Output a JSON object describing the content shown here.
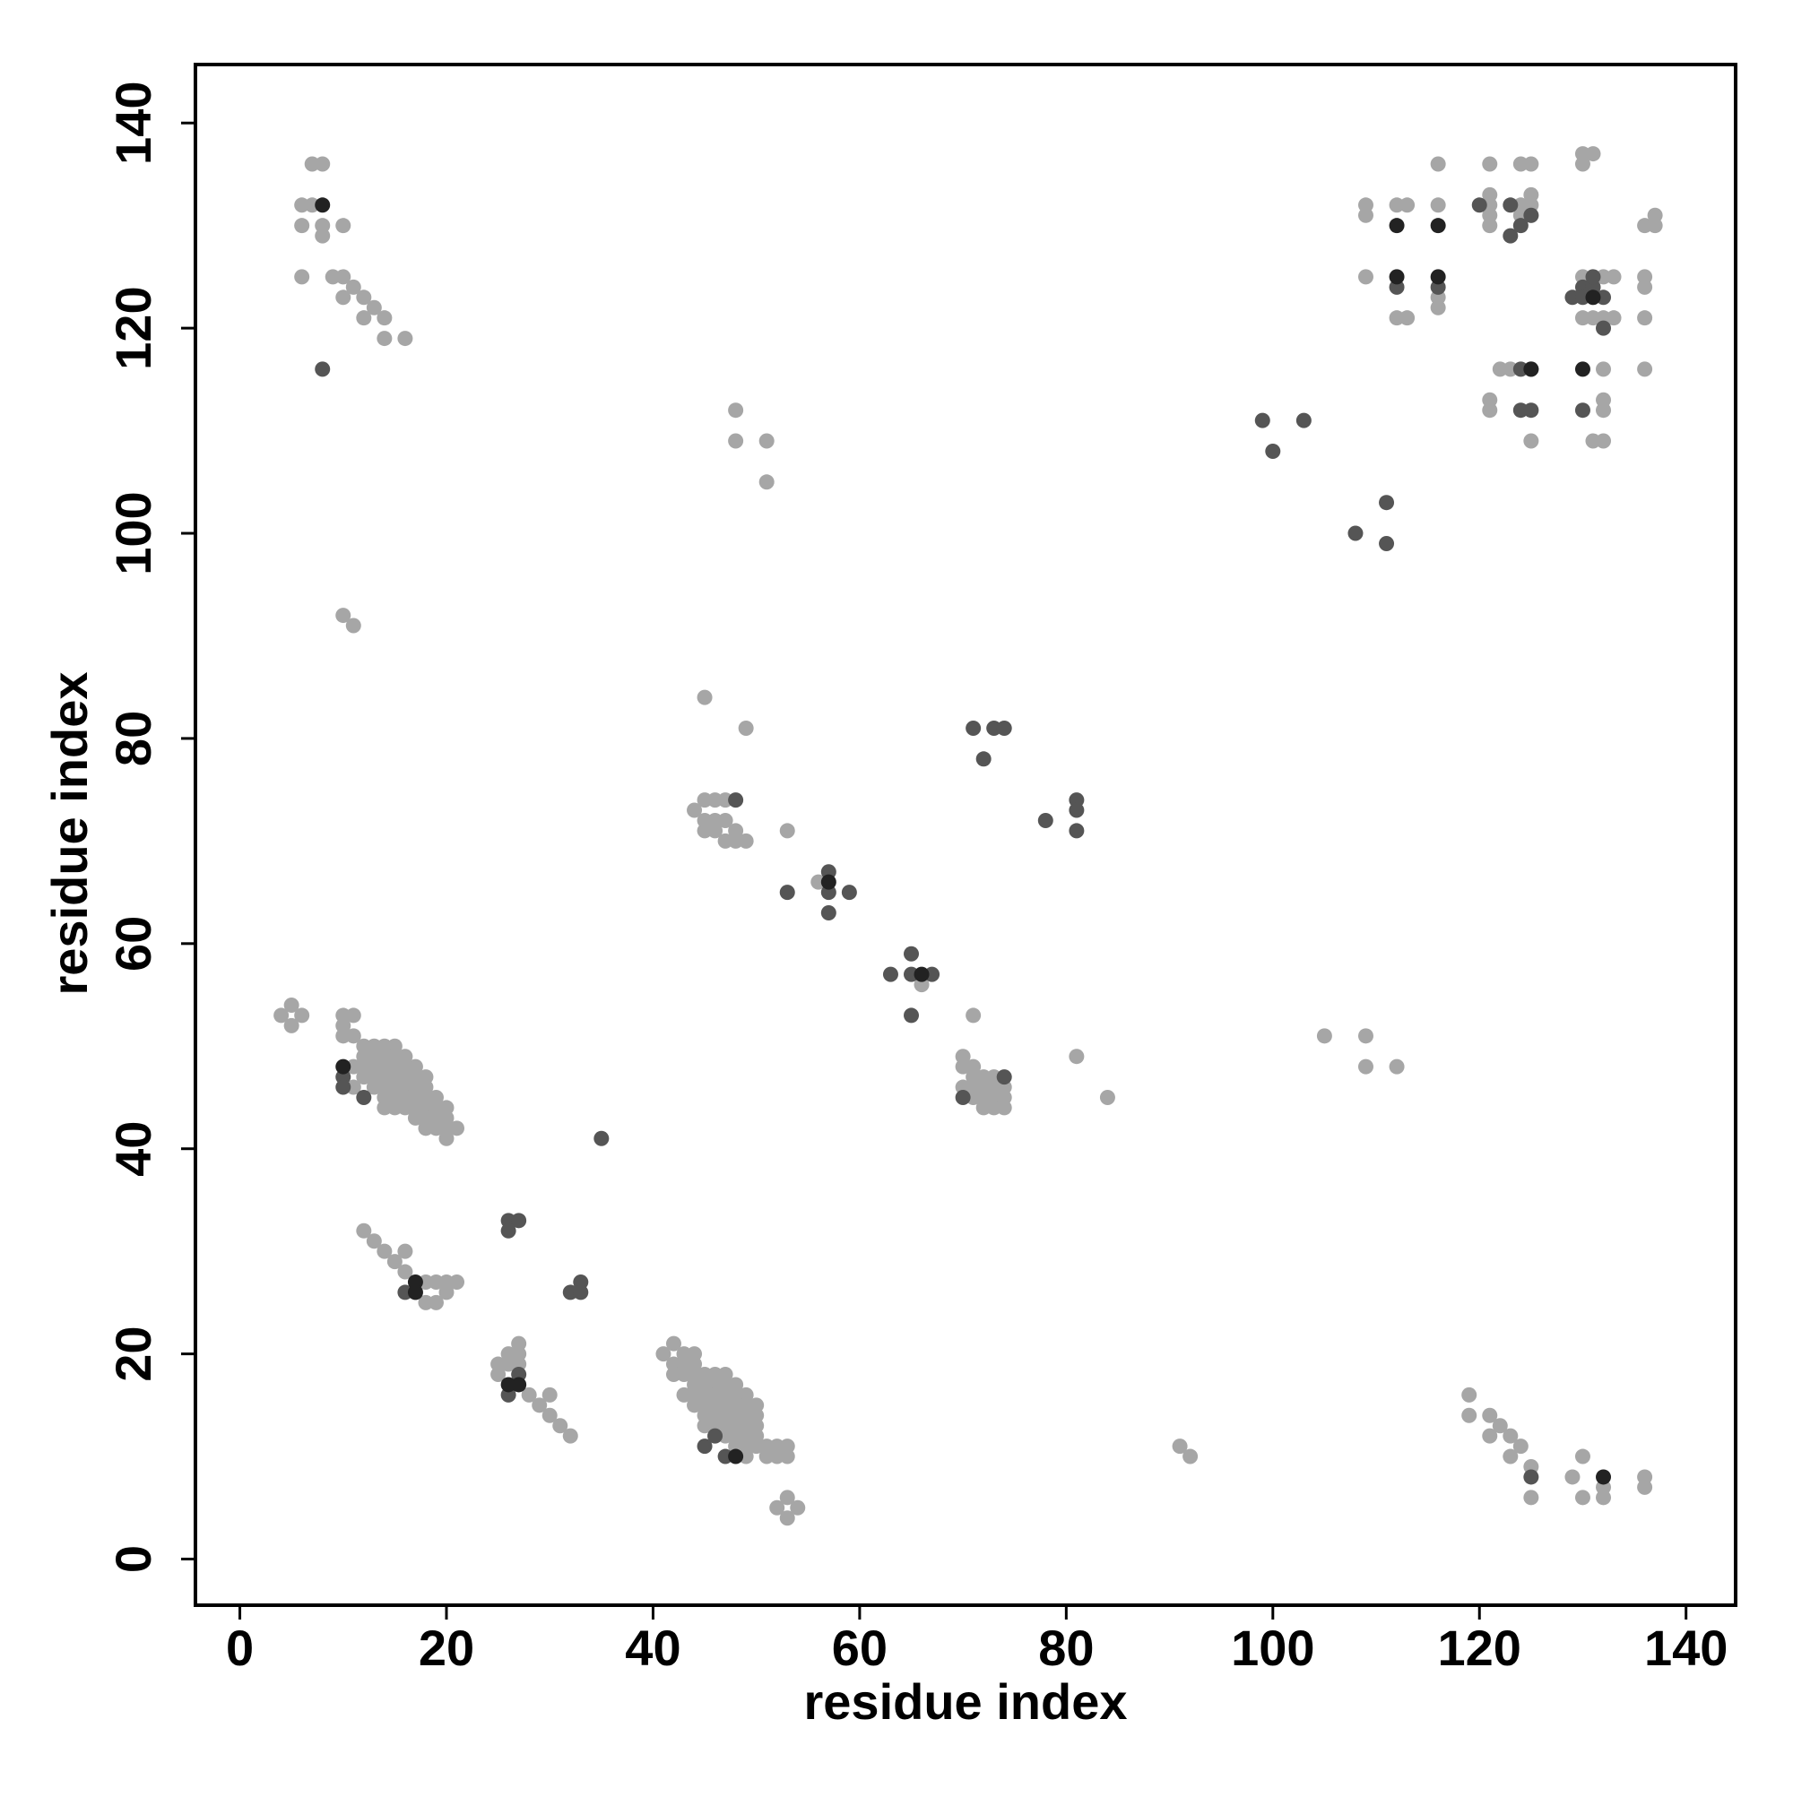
{
  "chart_data": {
    "type": "scatter",
    "x_label": "residue index",
    "y_label": "residue index",
    "xlim": [
      -4.3,
      144.8
    ],
    "ylim": [
      -4.5,
      145.7
    ],
    "xticks": [
      0,
      20,
      40,
      60,
      80,
      100,
      120,
      140
    ],
    "yticks": [
      0,
      20,
      40,
      60,
      80,
      100,
      120,
      140
    ],
    "series": [
      {
        "color": "#a6a6a6",
        "x": [
          7,
          8,
          6,
          7,
          6,
          8,
          10,
          8,
          6,
          9,
          10,
          11,
          10,
          12,
          13,
          12,
          14,
          14,
          16,
          48,
          48,
          51,
          51,
          10,
          11,
          45,
          49,
          53,
          56,
          66,
          71,
          81,
          84,
          105,
          109,
          109,
          112,
          4,
          5,
          5,
          6,
          45,
          46,
          47,
          44,
          45,
          46,
          47,
          46,
          47,
          48,
          49,
          45,
          48,
          10,
          11,
          10,
          10,
          11,
          12,
          13,
          14,
          15,
          12,
          13,
          14,
          15,
          16,
          11,
          12,
          13,
          14,
          15,
          16,
          17,
          12,
          13,
          14,
          15,
          16,
          17,
          18,
          11,
          13,
          14,
          15,
          16,
          17,
          18,
          14,
          15,
          16,
          17,
          18,
          19,
          16,
          17,
          18,
          19,
          20,
          17,
          18,
          19,
          20,
          18,
          19,
          20,
          21,
          20,
          14,
          15,
          70,
          70,
          71,
          71,
          72,
          73,
          70,
          71,
          72,
          73,
          74,
          71,
          72,
          73,
          74,
          73,
          74,
          72,
          12,
          13,
          14,
          15,
          16,
          16,
          18,
          19,
          20,
          21,
          18,
          19,
          20,
          17,
          25,
          26,
          27,
          27,
          25,
          26,
          27,
          28,
          29,
          30,
          30,
          31,
          32,
          41,
          42,
          43,
          44,
          42,
          43,
          44,
          45,
          42,
          43,
          44,
          45,
          46,
          47,
          48,
          43,
          44,
          45,
          46,
          47,
          48,
          49,
          44,
          45,
          46,
          47,
          48,
          49,
          50,
          45,
          46,
          47,
          48,
          49,
          50,
          45,
          46,
          47,
          48,
          49,
          50,
          46,
          47,
          48,
          49,
          50,
          48,
          49,
          50,
          51,
          52,
          53,
          49,
          51,
          52,
          53,
          52,
          53,
          54,
          53,
          44,
          47,
          46,
          91,
          92,
          119,
          119,
          121,
          122,
          121,
          123,
          124,
          123,
          125,
          125,
          129,
          130,
          130,
          132,
          132,
          136,
          136,
          109,
          109,
          109,
          112,
          113,
          112,
          113,
          116,
          116,
          116,
          116,
          121,
          121,
          121,
          121,
          121,
          124,
          125,
          125,
          124,
          125,
          124,
          125,
          122,
          123,
          121,
          121,
          125,
          130,
          131,
          130,
          130,
          131,
          132,
          133,
          130,
          131,
          132,
          133,
          132,
          132,
          132,
          131,
          132,
          131,
          136,
          136,
          136,
          136,
          137,
          137,
          136,
          131
        ],
        "y": [
          136,
          136,
          132,
          132,
          130,
          130,
          130,
          129,
          125,
          125,
          125,
          124,
          123,
          123,
          122,
          121,
          121,
          119,
          119,
          112,
          109,
          109,
          105,
          92,
          91,
          84,
          81,
          71,
          66,
          56,
          53,
          49,
          45,
          51,
          51,
          48,
          48,
          53,
          54,
          52,
          53,
          74,
          74,
          74,
          73,
          72,
          72,
          72,
          71,
          70,
          70,
          70,
          71,
          71,
          53,
          53,
          52,
          51,
          51,
          50,
          50,
          50,
          50,
          49,
          49,
          49,
          49,
          49,
          48,
          48,
          48,
          48,
          48,
          48,
          48,
          47,
          47,
          47,
          47,
          47,
          47,
          47,
          46,
          46,
          46,
          46,
          46,
          46,
          46,
          45,
          45,
          45,
          45,
          45,
          45,
          44,
          44,
          44,
          44,
          44,
          43,
          43,
          43,
          43,
          42,
          42,
          42,
          42,
          41,
          44,
          44,
          49,
          48,
          48,
          47,
          47,
          47,
          46,
          46,
          46,
          46,
          46,
          45,
          45,
          45,
          45,
          44,
          44,
          44,
          32,
          31,
          30,
          29,
          30,
          28,
          27,
          27,
          27,
          27,
          25,
          25,
          26,
          26,
          19,
          20,
          21,
          20,
          18,
          19,
          19,
          16,
          15,
          16,
          14,
          13,
          12,
          20,
          21,
          20,
          20,
          19,
          19,
          19,
          18,
          18,
          18,
          18,
          17,
          17,
          17,
          17,
          16,
          16,
          16,
          16,
          16,
          16,
          16,
          15,
          15,
          15,
          15,
          15,
          15,
          15,
          14,
          14,
          14,
          14,
          14,
          14,
          13,
          13,
          13,
          13,
          13,
          13,
          12,
          12,
          12,
          12,
          12,
          11,
          11,
          11,
          11,
          11,
          11,
          10,
          10,
          10,
          10,
          5,
          6,
          5,
          4,
          17,
          18,
          18,
          11,
          10,
          16,
          14,
          14,
          13,
          12,
          12,
          11,
          10,
          9,
          6,
          8,
          10,
          6,
          7,
          6,
          8,
          7,
          132,
          131,
          125,
          132,
          132,
          121,
          121,
          136,
          132,
          123,
          122,
          136,
          133,
          132,
          131,
          130,
          136,
          136,
          133,
          132,
          132,
          131,
          131,
          116,
          116,
          113,
          112,
          109,
          137,
          137,
          136,
          125,
          125,
          125,
          125,
          121,
          121,
          121,
          121,
          116,
          113,
          112,
          109,
          109,
          124,
          125,
          124,
          121,
          116,
          131,
          130,
          130,
          123
        ]
      },
      {
        "color": "#555555",
        "x": [
          35,
          26,
          27,
          26,
          32,
          33,
          33,
          53,
          57,
          57,
          57,
          59,
          63,
          65,
          65,
          65,
          67,
          71,
          73,
          74,
          72,
          78,
          81,
          81,
          81,
          74,
          70,
          48,
          99,
          100,
          103,
          108,
          111,
          111,
          10,
          10,
          12,
          120,
          123,
          123,
          124,
          125,
          124,
          125,
          124,
          125,
          130,
          129,
          130,
          131,
          131,
          132,
          130,
          132,
          112,
          116,
          46,
          47,
          26,
          125,
          45,
          27,
          8,
          16
        ],
        "y": [
          41,
          33,
          33,
          32,
          26,
          27,
          26,
          65,
          67,
          65,
          63,
          65,
          57,
          59,
          57,
          53,
          57,
          81,
          81,
          81,
          78,
          72,
          74,
          73,
          71,
          47,
          45,
          74,
          111,
          108,
          111,
          100,
          103,
          99,
          47,
          46,
          45,
          132,
          132,
          129,
          130,
          131,
          116,
          116,
          112,
          112,
          112,
          123,
          124,
          124,
          125,
          123,
          123,
          120,
          124,
          124,
          12,
          10,
          16,
          8,
          11,
          18,
          116,
          26
        ]
      },
      {
        "color": "#222222",
        "x": [
          8,
          10,
          17,
          17,
          26,
          27,
          48,
          57,
          66,
          112,
          116,
          112,
          116,
          130,
          132,
          125,
          131
        ],
        "y": [
          132,
          48,
          27,
          26,
          17,
          17,
          10,
          66,
          57,
          130,
          130,
          125,
          125,
          116,
          8,
          116,
          123
        ]
      }
    ]
  }
}
